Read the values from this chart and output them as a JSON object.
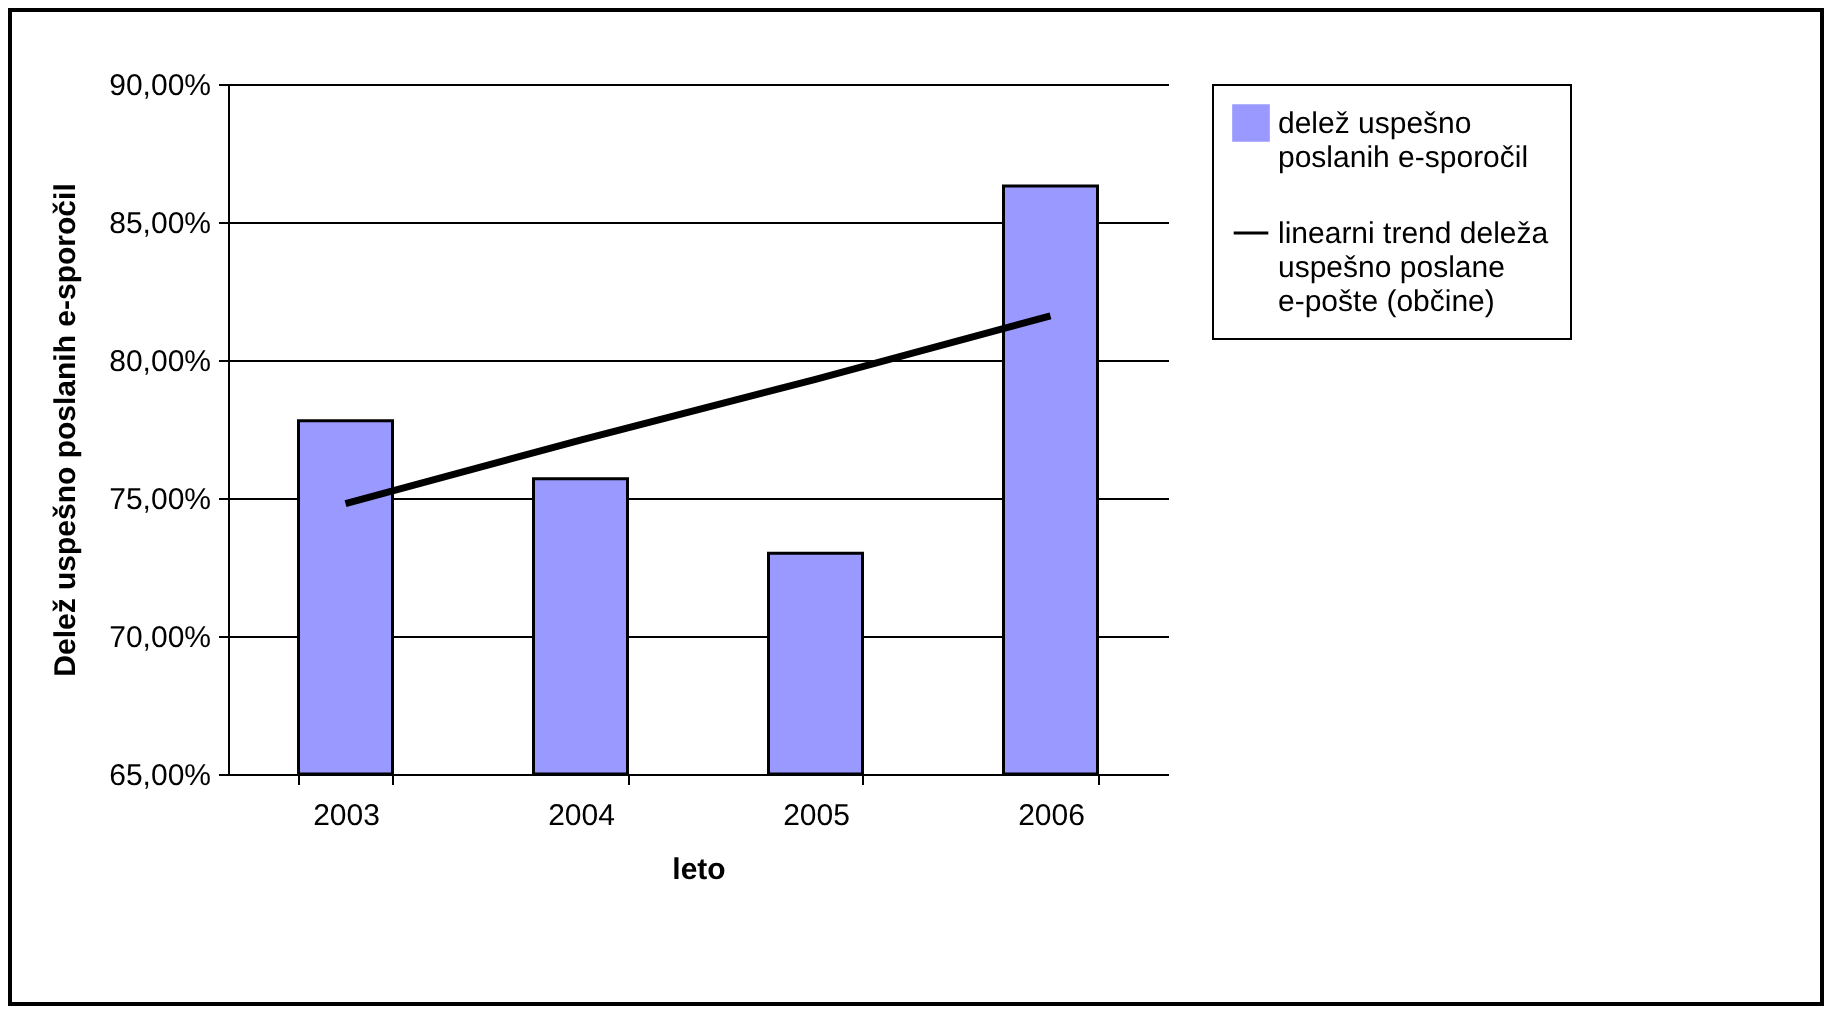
{
  "chart_data": {
    "type": "bar",
    "xlabel": "leto",
    "ylabel": "Delež uspešno poslanih e-sporočil",
    "categories": [
      "2003",
      "2004",
      "2005",
      "2006"
    ],
    "series": [
      {
        "name": "delež uspešno poslanih e-sporočil",
        "color": "#9999ff",
        "values": [
          77.8,
          75.7,
          73.0,
          86.3
        ]
      },
      {
        "name": "linearni trend deleža uspešno poslane e-pošte (občine)",
        "type": "line",
        "color": "#000000",
        "values": [
          74.8,
          77.1,
          79.3,
          81.6
        ]
      }
    ],
    "ylim": [
      65,
      90
    ],
    "yticks": [
      {
        "value": 65,
        "label": "65,00%"
      },
      {
        "value": 70,
        "label": "70,00%"
      },
      {
        "value": 75,
        "label": "75,00%"
      },
      {
        "value": 80,
        "label": "80,00%"
      },
      {
        "value": 85,
        "label": "85,00%"
      },
      {
        "value": 90,
        "label": "90,00%"
      }
    ],
    "grid": "y",
    "legend": "right"
  }
}
